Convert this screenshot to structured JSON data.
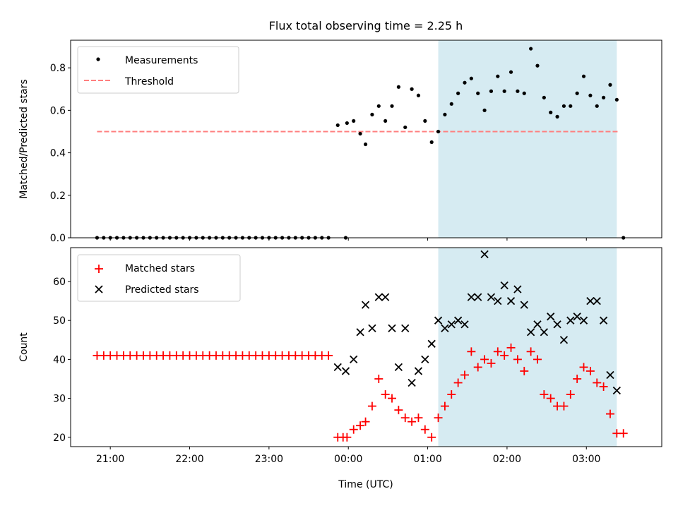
{
  "title": "Flux total observing time = 2.25 h",
  "colors": {
    "highlight": "#add8e6",
    "threshold": "#ff7f7f",
    "measurement": "#000000",
    "matched": "#ff0000",
    "predicted": "#000000"
  },
  "chart_data": [
    {
      "type": "scatter",
      "ylabel": "Matched/Predicted stars",
      "ylim": [
        0,
        0.93
      ],
      "yticks": [
        "0.0",
        "0.2",
        "0.4",
        "0.6",
        "0.8"
      ],
      "xlim": [
        20.5,
        3.95
      ],
      "highlight_span": [
        "01:08",
        "03:23"
      ],
      "legend": {
        "location": "upper-left",
        "entries": [
          "Measurements",
          "Threshold"
        ]
      },
      "threshold": {
        "name": "Threshold",
        "y": 0.5,
        "x_range": [
          "20:50",
          "03:25"
        ],
        "style": "dashed"
      },
      "series": [
        {
          "name": "Measurements",
          "marker": "dot",
          "points": [
            [
              "20:50",
              0
            ],
            [
              "20:55",
              0
            ],
            [
              "21:00",
              0
            ],
            [
              "21:05",
              0
            ],
            [
              "21:10",
              0
            ],
            [
              "21:15",
              0
            ],
            [
              "21:20",
              0
            ],
            [
              "21:25",
              0
            ],
            [
              "21:30",
              0
            ],
            [
              "21:35",
              0
            ],
            [
              "21:40",
              0
            ],
            [
              "21:45",
              0
            ],
            [
              "21:50",
              0
            ],
            [
              "21:55",
              0
            ],
            [
              "22:00",
              0
            ],
            [
              "22:05",
              0
            ],
            [
              "22:10",
              0
            ],
            [
              "22:15",
              0
            ],
            [
              "22:20",
              0
            ],
            [
              "22:25",
              0
            ],
            [
              "22:30",
              0
            ],
            [
              "22:35",
              0
            ],
            [
              "22:40",
              0
            ],
            [
              "22:45",
              0
            ],
            [
              "22:50",
              0
            ],
            [
              "22:55",
              0
            ],
            [
              "23:00",
              0
            ],
            [
              "23:05",
              0
            ],
            [
              "23:10",
              0
            ],
            [
              "23:15",
              0
            ],
            [
              "23:20",
              0
            ],
            [
              "23:25",
              0
            ],
            [
              "23:30",
              0
            ],
            [
              "23:35",
              0
            ],
            [
              "23:40",
              0
            ],
            [
              "23:45",
              0
            ],
            [
              "23:52",
              0.53
            ],
            [
              "23:58",
              0
            ],
            [
              "23:59",
              0.54
            ],
            [
              "00:04",
              0.55
            ],
            [
              "00:09",
              0.49
            ],
            [
              "00:13",
              0.44
            ],
            [
              "00:18",
              0.58
            ],
            [
              "00:23",
              0.62
            ],
            [
              "00:28",
              0.55
            ],
            [
              "00:33",
              0.62
            ],
            [
              "00:38",
              0.71
            ],
            [
              "00:43",
              0.52
            ],
            [
              "00:48",
              0.7
            ],
            [
              "00:53",
              0.67
            ],
            [
              "00:58",
              0.55
            ],
            [
              "01:03",
              0.45
            ],
            [
              "01:08",
              0.5
            ],
            [
              "01:13",
              0.58
            ],
            [
              "01:18",
              0.63
            ],
            [
              "01:23",
              0.68
            ],
            [
              "01:28",
              0.73
            ],
            [
              "01:33",
              0.75
            ],
            [
              "01:38",
              0.68
            ],
            [
              "01:43",
              0.6
            ],
            [
              "01:48",
              0.69
            ],
            [
              "01:53",
              0.76
            ],
            [
              "01:58",
              0.69
            ],
            [
              "02:03",
              0.78
            ],
            [
              "02:08",
              0.69
            ],
            [
              "02:13",
              0.68
            ],
            [
              "02:18",
              0.89
            ],
            [
              "02:23",
              0.81
            ],
            [
              "02:28",
              0.66
            ],
            [
              "02:33",
              0.59
            ],
            [
              "02:38",
              0.57
            ],
            [
              "02:43",
              0.62
            ],
            [
              "02:48",
              0.62
            ],
            [
              "02:53",
              0.68
            ],
            [
              "02:58",
              0.76
            ],
            [
              "03:03",
              0.67
            ],
            [
              "03:08",
              0.62
            ],
            [
              "03:13",
              0.66
            ],
            [
              "03:18",
              0.72
            ],
            [
              "03:23",
              0.65
            ],
            [
              "03:28",
              0
            ]
          ]
        }
      ]
    },
    {
      "type": "scatter",
      "xlabel": "Time (UTC)",
      "ylabel": "Count",
      "ylim": [
        17.6,
        68.7
      ],
      "yticks": [
        "20",
        "30",
        "40",
        "50",
        "60"
      ],
      "xlim": [
        20.5,
        3.95
      ],
      "xticks": [
        "21:00",
        "22:00",
        "23:00",
        "00:00",
        "01:00",
        "02:00",
        "03:00"
      ],
      "highlight_span": [
        "01:08",
        "03:23"
      ],
      "legend": {
        "location": "upper-left",
        "entries": [
          "Matched stars",
          "Predicted stars"
        ]
      },
      "series": [
        {
          "name": "Matched stars",
          "marker": "plus",
          "points": [
            [
              "20:50",
              41
            ],
            [
              "20:55",
              41
            ],
            [
              "21:00",
              41
            ],
            [
              "21:05",
              41
            ],
            [
              "21:10",
              41
            ],
            [
              "21:15",
              41
            ],
            [
              "21:20",
              41
            ],
            [
              "21:25",
              41
            ],
            [
              "21:30",
              41
            ],
            [
              "21:35",
              41
            ],
            [
              "21:40",
              41
            ],
            [
              "21:45",
              41
            ],
            [
              "21:50",
              41
            ],
            [
              "21:55",
              41
            ],
            [
              "22:00",
              41
            ],
            [
              "22:05",
              41
            ],
            [
              "22:10",
              41
            ],
            [
              "22:15",
              41
            ],
            [
              "22:20",
              41
            ],
            [
              "22:25",
              41
            ],
            [
              "22:30",
              41
            ],
            [
              "22:35",
              41
            ],
            [
              "22:40",
              41
            ],
            [
              "22:45",
              41
            ],
            [
              "22:50",
              41
            ],
            [
              "22:55",
              41
            ],
            [
              "23:00",
              41
            ],
            [
              "23:05",
              41
            ],
            [
              "23:10",
              41
            ],
            [
              "23:15",
              41
            ],
            [
              "23:20",
              41
            ],
            [
              "23:25",
              41
            ],
            [
              "23:30",
              41
            ],
            [
              "23:35",
              41
            ],
            [
              "23:40",
              41
            ],
            [
              "23:45",
              41
            ],
            [
              "23:52",
              20
            ],
            [
              "23:56",
              20
            ],
            [
              "23:59",
              20
            ],
            [
              "00:04",
              22
            ],
            [
              "00:09",
              23
            ],
            [
              "00:13",
              24
            ],
            [
              "00:18",
              28
            ],
            [
              "00:23",
              35
            ],
            [
              "00:28",
              31
            ],
            [
              "00:33",
              30
            ],
            [
              "00:38",
              27
            ],
            [
              "00:43",
              25
            ],
            [
              "00:48",
              24
            ],
            [
              "00:53",
              25
            ],
            [
              "00:58",
              22
            ],
            [
              "01:03",
              20
            ],
            [
              "01:08",
              25
            ],
            [
              "01:13",
              28
            ],
            [
              "01:18",
              31
            ],
            [
              "01:23",
              34
            ],
            [
              "01:28",
              36
            ],
            [
              "01:33",
              42
            ],
            [
              "01:38",
              38
            ],
            [
              "01:43",
              40
            ],
            [
              "01:48",
              39
            ],
            [
              "01:53",
              42
            ],
            [
              "01:58",
              41
            ],
            [
              "02:03",
              43
            ],
            [
              "02:08",
              40
            ],
            [
              "02:13",
              37
            ],
            [
              "02:18",
              42
            ],
            [
              "02:23",
              40
            ],
            [
              "02:28",
              31
            ],
            [
              "02:33",
              30
            ],
            [
              "02:38",
              28
            ],
            [
              "02:43",
              28
            ],
            [
              "02:48",
              31
            ],
            [
              "02:53",
              35
            ],
            [
              "02:58",
              38
            ],
            [
              "03:03",
              37
            ],
            [
              "03:08",
              34
            ],
            [
              "03:13",
              33
            ],
            [
              "03:18",
              26
            ],
            [
              "03:23",
              21
            ],
            [
              "03:28",
              21
            ]
          ]
        },
        {
          "name": "Predicted stars",
          "marker": "x",
          "points": [
            [
              "23:52",
              38
            ],
            [
              "23:58",
              37
            ],
            [
              "00:04",
              40
            ],
            [
              "00:09",
              47
            ],
            [
              "00:13",
              54
            ],
            [
              "00:18",
              48
            ],
            [
              "00:23",
              56
            ],
            [
              "00:28",
              56
            ],
            [
              "00:33",
              48
            ],
            [
              "00:38",
              38
            ],
            [
              "00:43",
              48
            ],
            [
              "00:48",
              34
            ],
            [
              "00:53",
              37
            ],
            [
              "00:58",
              40
            ],
            [
              "01:03",
              44
            ],
            [
              "01:08",
              50
            ],
            [
              "01:13",
              48
            ],
            [
              "01:18",
              49
            ],
            [
              "01:23",
              50
            ],
            [
              "01:28",
              49
            ],
            [
              "01:33",
              56
            ],
            [
              "01:38",
              56
            ],
            [
              "01:43",
              67
            ],
            [
              "01:48",
              56
            ],
            [
              "01:53",
              55
            ],
            [
              "01:58",
              59
            ],
            [
              "02:03",
              55
            ],
            [
              "02:08",
              58
            ],
            [
              "02:13",
              54
            ],
            [
              "02:18",
              47
            ],
            [
              "02:23",
              49
            ],
            [
              "02:28",
              47
            ],
            [
              "02:33",
              51
            ],
            [
              "02:38",
              49
            ],
            [
              "02:43",
              45
            ],
            [
              "02:48",
              50
            ],
            [
              "02:53",
              51
            ],
            [
              "02:58",
              50
            ],
            [
              "03:03",
              55
            ],
            [
              "03:08",
              55
            ],
            [
              "03:13",
              50
            ],
            [
              "03:18",
              36
            ],
            [
              "03:23",
              32
            ]
          ]
        }
      ]
    }
  ]
}
